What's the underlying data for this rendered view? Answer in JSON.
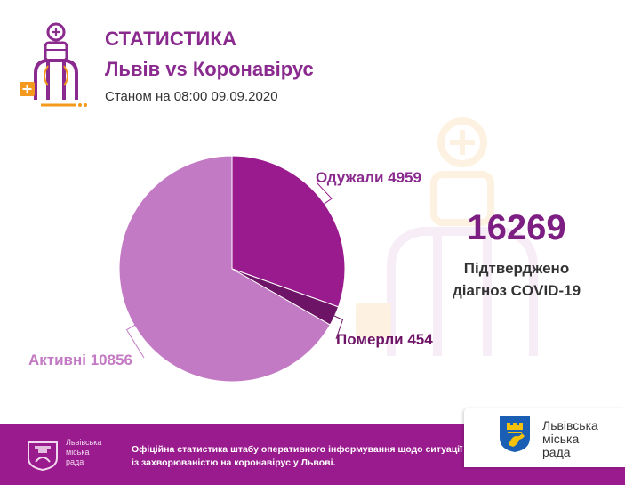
{
  "header": {
    "title": "СТАТИСТИКА",
    "subtitle": "Львів vs Коронавірус",
    "date": "Станом на 08:00 09.09.2020"
  },
  "summary": {
    "total": "16269",
    "caption_line1": "Підтверджено",
    "caption_line2": "діагноз COVID-19"
  },
  "chart_data": {
    "type": "pie",
    "slices": [
      {
        "label": "Одужали",
        "value": 4959,
        "color": "#9a1b8e",
        "text": "Одужали 4959"
      },
      {
        "label": "Померли",
        "value": 454,
        "color": "#6e1466",
        "text": "Померли 454"
      },
      {
        "label": "Активні",
        "value": 10856,
        "color": "#c37ac4",
        "text": "Активні 10856"
      }
    ],
    "start_angle_deg": 0,
    "direction": "clockwise"
  },
  "footer": {
    "city_name_line1": "Львівська",
    "city_name_line2": "міська",
    "city_name_line3": "рада",
    "note": "Офіційна статистика штабу оперативного інформування щодо ситуації із захворюваністю на коронавірус у Львові.",
    "brand_line1": "Львівська",
    "brand_line2": "міська",
    "brand_line3": "рада"
  },
  "colors": {
    "accent": "#8a2a8f",
    "accent_dark": "#7d1f82",
    "footer_bg": "#9a1b8e",
    "logo_orange": "#f39a1e"
  },
  "icons": {
    "header_logo": "doctor-icon",
    "watermark": "doctor-watermark-icon",
    "footer_logo": "city-council-logo",
    "footer_crest": "lion-crest-icon"
  }
}
